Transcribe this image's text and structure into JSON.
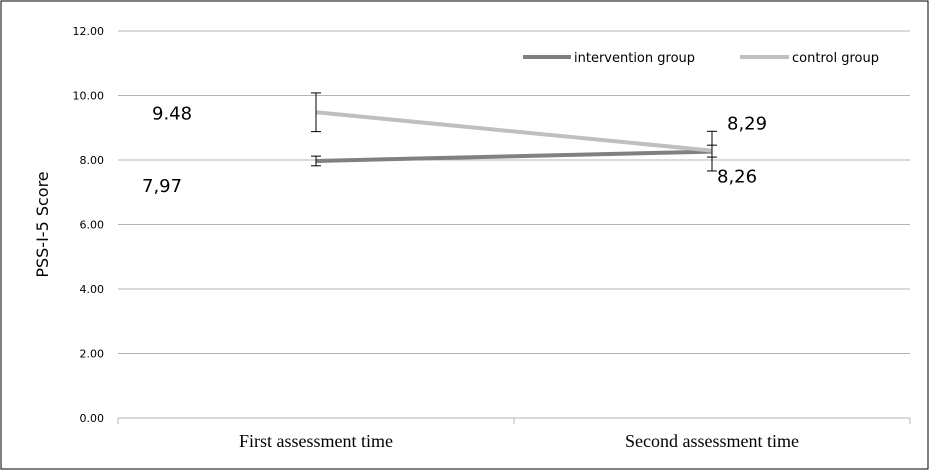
{
  "chart_data": {
    "type": "line",
    "categories": [
      "First assessment time",
      "Second assessment time"
    ],
    "ylabel": "PSS-I-5 Score",
    "ylim": [
      0,
      12
    ],
    "yticks": [
      "0.00",
      "2.00",
      "4.00",
      "6.00",
      "8.00",
      "10.00",
      "12.00"
    ],
    "grid": true,
    "legend_position": "top-right",
    "series": [
      {
        "name": "intervention group",
        "color": "#808080",
        "values": [
          7.97,
          8.26
        ],
        "error_low": [
          7.82,
          7.66
        ],
        "error_high": [
          8.12,
          8.46
        ],
        "labels": [
          "7,97",
          "8,26"
        ]
      },
      {
        "name": "control group",
        "color": "#bfbfbf",
        "values": [
          9.48,
          8.29
        ],
        "error_low": [
          8.88,
          8.09
        ],
        "error_high": [
          10.08,
          8.89
        ],
        "labels": [
          "9.48",
          "8,29"
        ]
      }
    ]
  }
}
